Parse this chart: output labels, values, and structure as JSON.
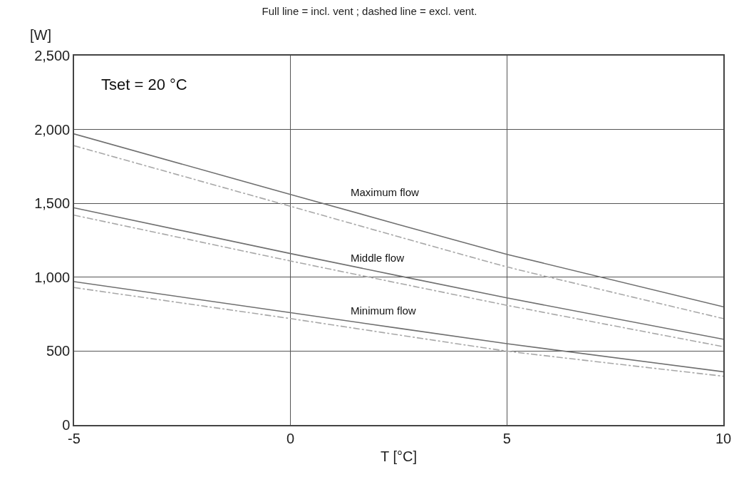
{
  "chart_data": {
    "type": "line",
    "title": "Full line = incl. vent ; dashed line = excl. vent.",
    "xlabel": "T [°C]",
    "ylabel": "[W]",
    "x": [
      -5,
      0,
      5,
      10
    ],
    "series": [
      {
        "color": "#707070",
        "line_style": "solid",
        "values": [
          1970,
          1560,
          1155,
          800
        ]
      },
      {
        "color": "#a8a8a8",
        "line_style": "dashed",
        "values": [
          1890,
          1480,
          1070,
          720
        ]
      },
      {
        "color": "#707070",
        "line_style": "solid",
        "values": [
          1470,
          1160,
          860,
          580
        ]
      },
      {
        "color": "#a8a8a8",
        "line_style": "dashed",
        "values": [
          1420,
          1110,
          810,
          530
        ]
      },
      {
        "color": "#707070",
        "line_style": "solid",
        "values": [
          970,
          760,
          550,
          360
        ]
      },
      {
        "color": "#a8a8a8",
        "line_style": "dashed",
        "values": [
          930,
          720,
          500,
          330
        ]
      }
    ],
    "annotations": [
      "Tset = 20 °C",
      "Maximum flow",
      "Middle flow",
      "Minimum flow"
    ],
    "xlim": [
      -5,
      10
    ],
    "xticks": [
      -5,
      0,
      5,
      10
    ],
    "ylim": [
      0,
      2500
    ],
    "yticks": [
      0,
      500,
      {
        "value": 1000,
        "label": "1,000"
      },
      {
        "value": 1500,
        "label": "1,500"
      },
      {
        "value": 2000,
        "label": "2,000"
      },
      {
        "value": 2500,
        "label": "2,500"
      }
    ],
    "grid": true,
    "marker": "none"
  }
}
